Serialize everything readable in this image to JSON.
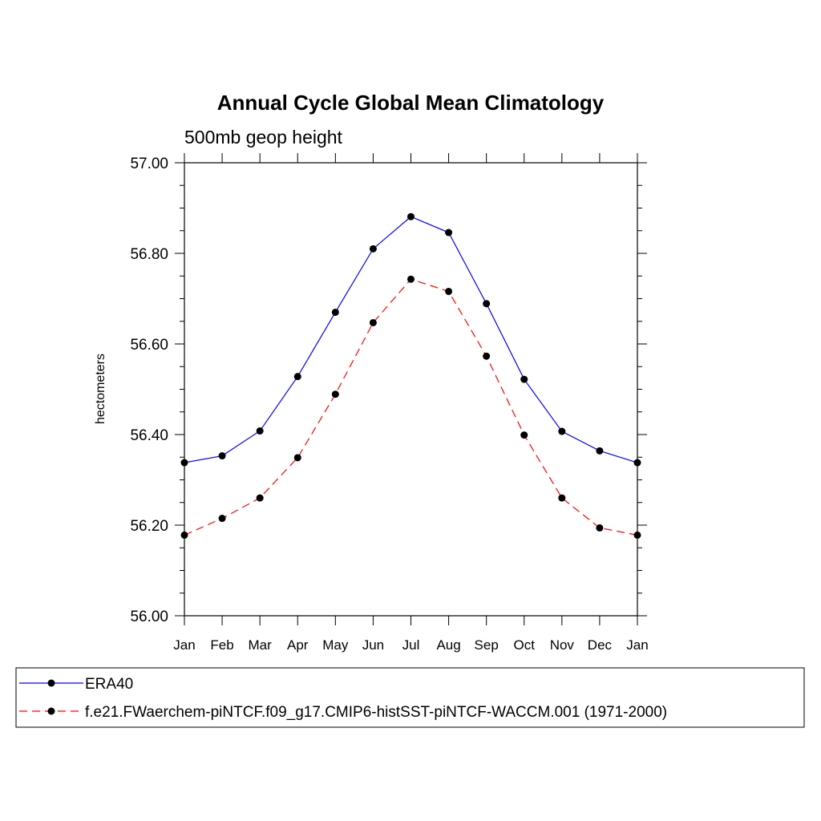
{
  "chart_data": {
    "type": "line",
    "title": "Annual Cycle Global Mean Climatology",
    "subtitle": "500mb geop height",
    "xlabel": "",
    "ylabel": "hectometers",
    "categories": [
      "Jan",
      "Feb",
      "Mar",
      "Apr",
      "May",
      "Jun",
      "Jul",
      "Aug",
      "Sep",
      "Oct",
      "Nov",
      "Dec",
      "Jan"
    ],
    "ylim": [
      56.0,
      57.0
    ],
    "yticks": [
      "56.00",
      "56.20",
      "56.40",
      "56.60",
      "56.80",
      "57.00"
    ],
    "grid": false,
    "legend_position": "bottom",
    "series": [
      {
        "name": "ERA40",
        "color": "#0000ff",
        "dash": "solid",
        "values": [
          56.338,
          56.353,
          56.408,
          56.528,
          56.67,
          56.81,
          56.881,
          56.846,
          56.689,
          56.522,
          56.407,
          56.364,
          56.338
        ]
      },
      {
        "name": "f.e21.FWaerchem-piNTCF.f09_g17.CMIP6-histSST-piNTCF-WACCM.001 (1971-2000)",
        "color": "#ff0000",
        "dash": "dashed",
        "values": [
          56.178,
          56.215,
          56.26,
          56.349,
          56.489,
          56.647,
          56.743,
          56.716,
          56.573,
          56.399,
          56.26,
          56.194,
          56.178
        ]
      }
    ],
    "marker_color": "#000000"
  }
}
